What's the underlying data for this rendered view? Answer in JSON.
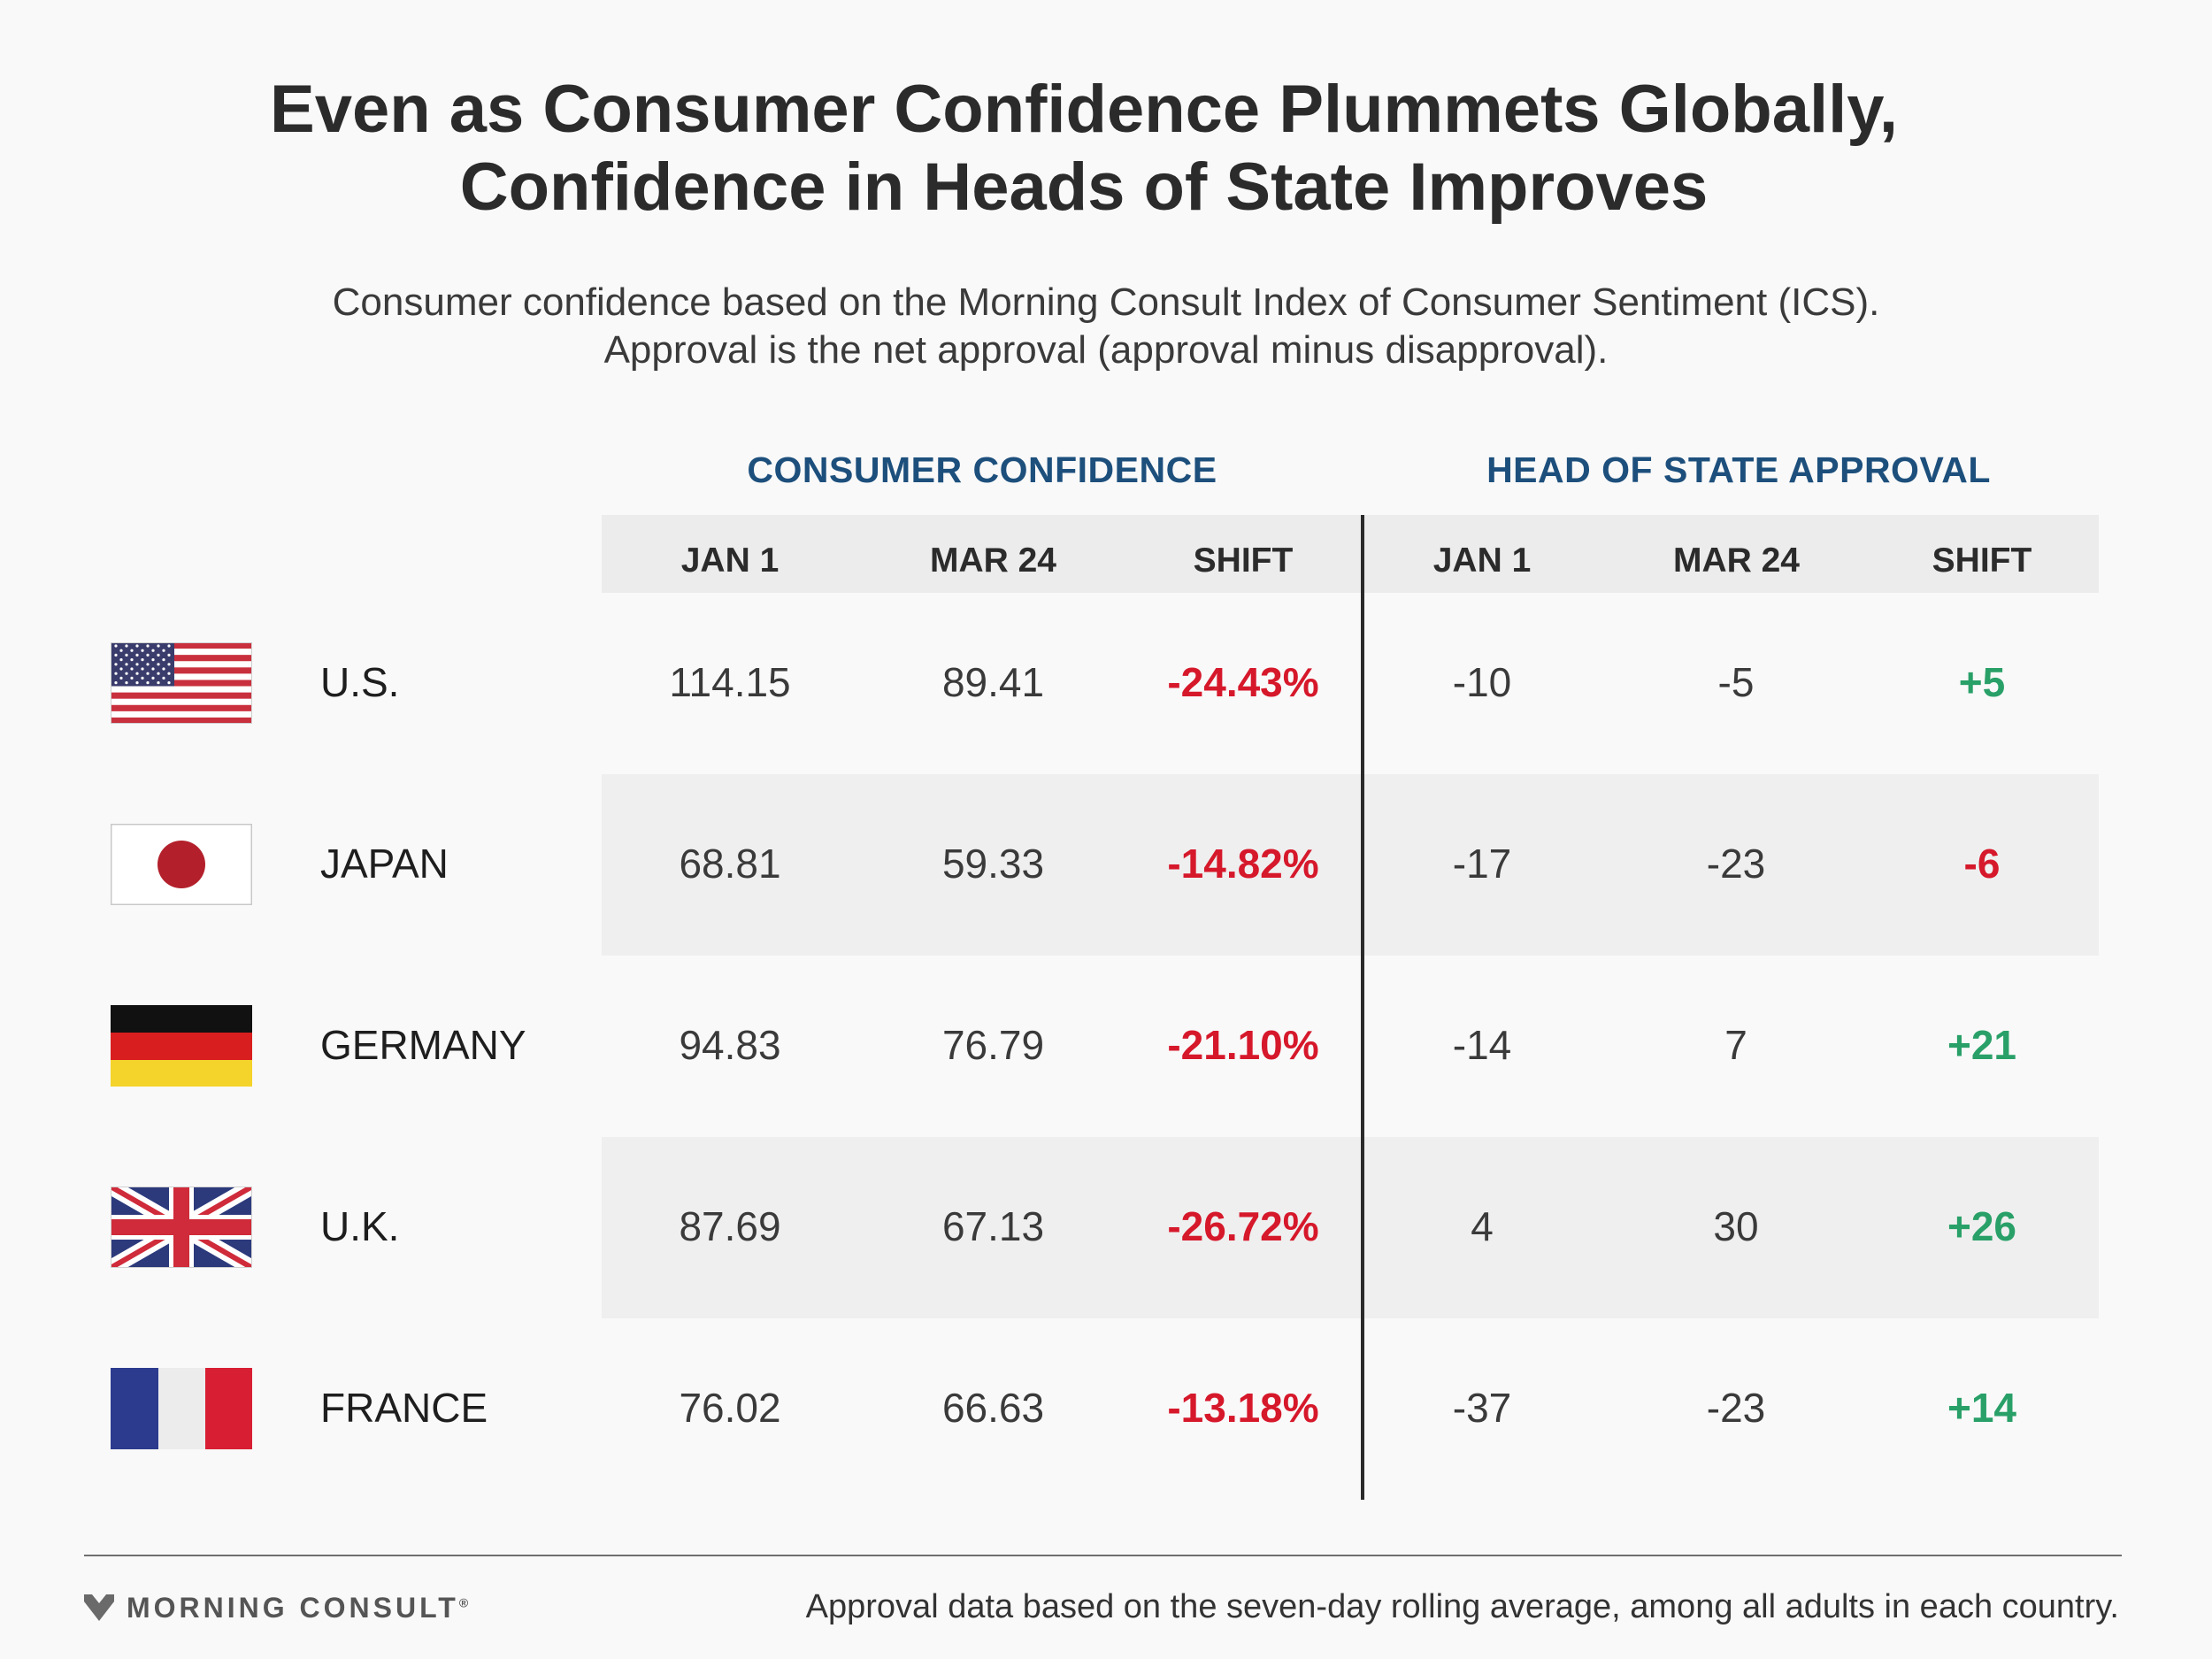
{
  "title_line1": "Even as Consumer Confidence Plummets Globally,",
  "title_line2": "Confidence in Heads of State Improves",
  "subtitle_line1": "Consumer confidence based on the Morning Consult Index of Consumer Sentiment (ICS).",
  "subtitle_line2": "Approval is the net approval (approval minus disapproval).",
  "groups": {
    "consumer_confidence": "CONSUMER CONFIDENCE",
    "head_of_state": "HEAD OF STATE APPROVAL"
  },
  "columns": [
    "JAN 1",
    "MAR 24",
    "SHIFT",
    "JAN 1",
    "MAR 24",
    "SHIFT"
  ],
  "colors": {
    "negative": "#d6182b",
    "positive": "#29a068",
    "group_header": "#1d4f7c"
  },
  "chart_data": {
    "type": "table",
    "rows": [
      {
        "country": "U.S.",
        "flag": "us-flag-icon",
        "cc_jan1": "114.15",
        "cc_mar24": "89.41",
        "cc_shift": "-24.43%",
        "hs_jan1": "-10",
        "hs_mar24": "-5",
        "hs_shift": "+5"
      },
      {
        "country": "JAPAN",
        "flag": "japan-flag-icon",
        "cc_jan1": "68.81",
        "cc_mar24": "59.33",
        "cc_shift": "-14.82%",
        "hs_jan1": "-17",
        "hs_mar24": "-23",
        "hs_shift": "-6"
      },
      {
        "country": "GERMANY",
        "flag": "germany-flag-icon",
        "cc_jan1": "94.83",
        "cc_mar24": "76.79",
        "cc_shift": "-21.10%",
        "hs_jan1": "-14",
        "hs_mar24": "7",
        "hs_shift": "+21"
      },
      {
        "country": "U.K.",
        "flag": "uk-flag-icon",
        "cc_jan1": "87.69",
        "cc_mar24": "67.13",
        "cc_shift": "-26.72%",
        "hs_jan1": "4",
        "hs_mar24": "30",
        "hs_shift": "+26"
      },
      {
        "country": "FRANCE",
        "flag": "france-flag-icon",
        "cc_jan1": "76.02",
        "cc_mar24": "66.63",
        "cc_shift": "-13.18%",
        "hs_jan1": "-37",
        "hs_mar24": "-23",
        "hs_shift": "+14"
      }
    ]
  },
  "footer": {
    "logo_text": "MORNING CONSULT",
    "logo_mark": "®",
    "note": "Approval data based on the seven-day rolling average, among all adults in each country."
  }
}
